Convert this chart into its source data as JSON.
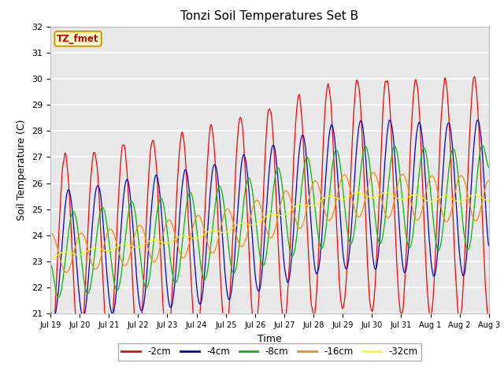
{
  "title": "Tonzi Soil Temperatures Set B",
  "xlabel": "Time",
  "ylabel": "Soil Temperature (C)",
  "ylim": [
    21.0,
    32.0
  ],
  "yticks": [
    21.0,
    22.0,
    23.0,
    24.0,
    25.0,
    26.0,
    27.0,
    28.0,
    29.0,
    30.0,
    31.0,
    32.0
  ],
  "xtick_labels": [
    "Jul 19",
    "Jul 20",
    "Jul 21",
    "Jul 22",
    "Jul 23",
    "Jul 24",
    "Jul 25",
    "Jul 26",
    "Jul 27",
    "Jul 28",
    "Jul 29",
    "Jul 30",
    "Jul 31",
    "Aug 1",
    "Aug 2",
    "Aug 3"
  ],
  "series_colors": [
    "#ff0000",
    "#0000cc",
    "#00bb00",
    "#ff8800",
    "#ffff00"
  ],
  "series_labels": [
    "-2cm",
    "-4cm",
    "-8cm",
    "-16cm",
    "-32cm"
  ],
  "legend_label": "TZ_fmet",
  "bg_color": "#e8e8e8",
  "title_fontsize": 11,
  "axis_fontsize": 9,
  "tick_fontsize": 8,
  "legend_box_facecolor": "#ffffcc",
  "legend_box_edgecolor": "#cc9900"
}
